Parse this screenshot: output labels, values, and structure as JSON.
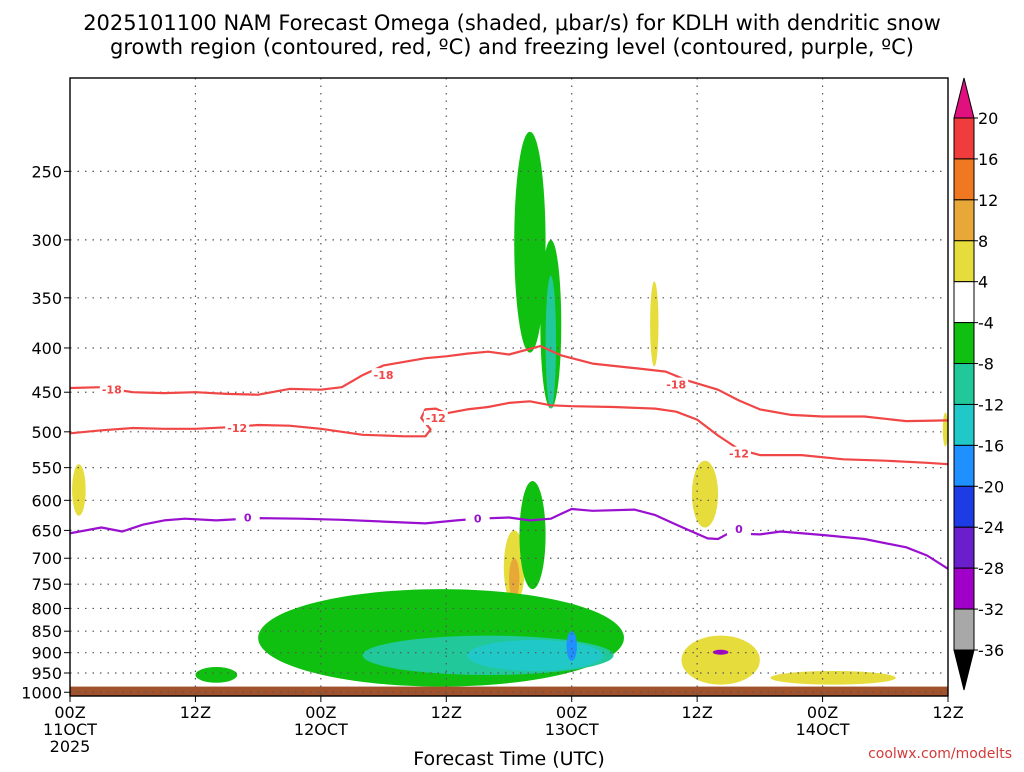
{
  "title_lines": [
    "2025101100 NAM Forecast Omega (shaded, μbar/s) for KDLH with dendritic snow",
    "growth region (contoured, red, ºC) and freezing level (contoured, purple, ºC)"
  ],
  "credit": "coolwx.com/modelts",
  "chart_data": {
    "type": "time-height cross section (filled contour + line contours)",
    "model": "NAM",
    "init_time": "2025101100",
    "station": "KDLH",
    "xlabel": "Forecast Time (UTC)",
    "x_unit": "hours since 2025-10-11 00Z",
    "xlim": [
      0,
      84
    ],
    "x_ticks": [
      {
        "hour": 0,
        "lines": [
          "00Z",
          "11OCT",
          "2025"
        ]
      },
      {
        "hour": 12,
        "lines": [
          "12Z"
        ]
      },
      {
        "hour": 24,
        "lines": [
          "00Z",
          "12OCT"
        ]
      },
      {
        "hour": 36,
        "lines": [
          "12Z"
        ]
      },
      {
        "hour": 48,
        "lines": [
          "00Z",
          "13OCT"
        ]
      },
      {
        "hour": 60,
        "lines": [
          "12Z"
        ]
      },
      {
        "hour": 72,
        "lines": [
          "00Z",
          "14OCT"
        ]
      },
      {
        "hour": 84,
        "lines": [
          "12Z"
        ]
      }
    ],
    "y_unit": "hPa",
    "ylim": [
      1010,
      195
    ],
    "y_scale": "log-pressure (inverted)",
    "y_ticks": [
      250,
      300,
      350,
      400,
      450,
      500,
      550,
      600,
      650,
      700,
      750,
      800,
      850,
      900,
      950,
      1000
    ],
    "grid": "dotted",
    "ground": {
      "color": "#a0522d",
      "pressure_top_hPa": 985
    },
    "colorbar": {
      "unit": "μbar/s",
      "extend": "both",
      "tick_labels": [
        "20",
        "16",
        "12",
        "8",
        "4",
        "-4",
        "-8",
        "-12",
        "-16",
        "-20",
        "-24",
        "-28",
        "-32",
        "-36"
      ],
      "bins": [
        {
          "range": ">20",
          "color": "#e0107f"
        },
        {
          "range": "16 to 20",
          "color": "#f03c3c"
        },
        {
          "range": "12 to 16",
          "color": "#f07820"
        },
        {
          "range": "8 to 12",
          "color": "#e8a838"
        },
        {
          "range": "4 to 8",
          "color": "#e6dc3c"
        },
        {
          "range": "-4 to 4",
          "color": "#ffffff"
        },
        {
          "range": "-8 to -4",
          "color": "#10c010"
        },
        {
          "range": "-12 to -8",
          "color": "#20c89a"
        },
        {
          "range": "-16 to -12",
          "color": "#20c8c8"
        },
        {
          "range": "-20 to -16",
          "color": "#1e90ff"
        },
        {
          "range": "-24 to -20",
          "color": "#1e3ce6"
        },
        {
          "range": "-28 to -24",
          "color": "#6a1ecc"
        },
        {
          "range": "-32 to -28",
          "color": "#a000c8"
        },
        {
          "range": "-36 to -32",
          "color": "#a8a8a8"
        },
        {
          "range": "<-36",
          "color": "#000000"
        }
      ]
    },
    "line_contours": [
      {
        "label": "-18",
        "unit": "ºC",
        "color": "#f04646",
        "points": [
          [
            0,
            445
          ],
          [
            3,
            444
          ],
          [
            6,
            450
          ],
          [
            9,
            451
          ],
          [
            12,
            450
          ],
          [
            15,
            452
          ],
          [
            18,
            453
          ],
          [
            21,
            446
          ],
          [
            24,
            447
          ],
          [
            26,
            444
          ],
          [
            28,
            430
          ],
          [
            30,
            419
          ],
          [
            32,
            415
          ],
          [
            34,
            411
          ],
          [
            36,
            409
          ],
          [
            38,
            406
          ],
          [
            40,
            404
          ],
          [
            42,
            407
          ],
          [
            45,
            398
          ],
          [
            47,
            408
          ],
          [
            50,
            417
          ],
          [
            54,
            422
          ],
          [
            57,
            426
          ],
          [
            59,
            436
          ],
          [
            62,
            447
          ],
          [
            64,
            460
          ],
          [
            66,
            471
          ],
          [
            69,
            478
          ],
          [
            72,
            480
          ],
          [
            76,
            480
          ],
          [
            80,
            486
          ],
          [
            84,
            485
          ]
        ],
        "label_positions": [
          [
            4,
            447
          ],
          [
            30,
            430
          ],
          [
            58,
            441
          ]
        ]
      },
      {
        "label": "-12",
        "unit": "ºC",
        "color": "#f04646",
        "points": [
          [
            0,
            502
          ],
          [
            3,
            498
          ],
          [
            6,
            495
          ],
          [
            9,
            496
          ],
          [
            12,
            496
          ],
          [
            15,
            494
          ],
          [
            18,
            491
          ],
          [
            21,
            492
          ],
          [
            24,
            496
          ],
          [
            26,
            500
          ],
          [
            28,
            504
          ],
          [
            30,
            505
          ],
          [
            32,
            506
          ],
          [
            34,
            506
          ],
          [
            34.5,
            497
          ],
          [
            33.6,
            482
          ],
          [
            34,
            471
          ],
          [
            35,
            470
          ],
          [
            36,
            476
          ],
          [
            38,
            471
          ],
          [
            40,
            468
          ],
          [
            42,
            463
          ],
          [
            44,
            461
          ],
          [
            46,
            466
          ],
          [
            48,
            467
          ],
          [
            52,
            468
          ],
          [
            56,
            470
          ],
          [
            58,
            474
          ],
          [
            60,
            484
          ],
          [
            62,
            505
          ],
          [
            64,
            524
          ],
          [
            66,
            532
          ],
          [
            70,
            532
          ],
          [
            74,
            538
          ],
          [
            78,
            540
          ],
          [
            82,
            543
          ],
          [
            84,
            545
          ]
        ],
        "label_positions": [
          [
            16,
            495
          ],
          [
            35,
            482
          ],
          [
            64,
            530
          ]
        ]
      },
      {
        "label": "0",
        "unit": "ºC",
        "color": "#9a10d0",
        "points": [
          [
            0,
            655
          ],
          [
            3,
            645
          ],
          [
            5,
            652
          ],
          [
            7,
            640
          ],
          [
            9,
            633
          ],
          [
            11,
            630
          ],
          [
            14,
            633
          ],
          [
            18,
            629
          ],
          [
            22,
            630
          ],
          [
            26,
            632
          ],
          [
            30,
            635
          ],
          [
            34,
            638
          ],
          [
            37,
            633
          ],
          [
            39,
            630
          ],
          [
            42,
            628
          ],
          [
            44,
            633
          ],
          [
            46,
            630
          ],
          [
            47,
            622
          ],
          [
            48,
            614
          ],
          [
            50,
            617
          ],
          [
            54,
            615
          ],
          [
            56,
            624
          ],
          [
            58,
            640
          ],
          [
            59,
            648
          ],
          [
            61,
            664
          ],
          [
            62,
            665
          ],
          [
            63,
            655
          ],
          [
            66,
            657
          ],
          [
            68,
            652
          ],
          [
            72,
            658
          ],
          [
            76,
            665
          ],
          [
            80,
            680
          ],
          [
            82,
            695
          ],
          [
            84,
            720
          ]
        ],
        "label_positions": [
          [
            17,
            628
          ],
          [
            39,
            630
          ],
          [
            64,
            648
          ]
        ]
      }
    ],
    "shaded_regions": [
      {
        "level": "-8 to -4",
        "color": "#10c010",
        "hours": [
          42.5,
          45.5
        ],
        "hPa": [
          225,
          405
        ],
        "note": "upper-level green column"
      },
      {
        "level": "-8 to -4",
        "color": "#10c010",
        "hours": [
          45.0,
          47.0
        ],
        "hPa": [
          300,
          470
        ],
        "note": "narrow green tongue"
      },
      {
        "level": "-12 to -8",
        "color": "#20c89a",
        "hours": [
          45.5,
          46.5
        ],
        "hPa": [
          330,
          470
        ],
        "note": "teal core of upper column"
      },
      {
        "level": "4 to 8",
        "color": "#e6dc3c",
        "hours": [
          55.5,
          56.3
        ],
        "hPa": [
          335,
          420
        ],
        "note": "yellow patch"
      },
      {
        "level": "4 to 8",
        "color": "#e6dc3c",
        "hours": [
          0.2,
          1.5
        ],
        "hPa": [
          545,
          625
        ],
        "note": "yellow patch near 11OCT 00Z"
      },
      {
        "level": "4 to 8",
        "color": "#e6dc3c",
        "hours": [
          59.5,
          62
        ],
        "hPa": [
          540,
          645
        ],
        "note": "yellow patch near 13OCT 12Z"
      },
      {
        "level": "4 to 8",
        "color": "#e6dc3c",
        "hours": [
          83.5,
          84
        ],
        "hPa": [
          475,
          520
        ],
        "note": "yellow sliver at right edge"
      },
      {
        "level": "4 to 8",
        "color": "#e6dc3c",
        "hours": [
          41.5,
          43.5
        ],
        "hPa": [
          650,
          790
        ],
        "note": "yellow/orange column"
      },
      {
        "level": "8 to 12",
        "color": "#e8a838",
        "hours": [
          42,
          43
        ],
        "hPa": [
          700,
          780
        ],
        "note": "orange core"
      },
      {
        "level": "-8 to -4",
        "color": "#10c010",
        "hours": [
          43,
          45.5
        ],
        "hPa": [
          570,
          760
        ],
        "note": "mid-level green"
      },
      {
        "level": "-8 to -4",
        "color": "#10c010",
        "hours": [
          12,
          16
        ],
        "hPa": [
          935,
          975
        ],
        "note": "low-level green blob"
      },
      {
        "level": "-8 to -4",
        "color": "#10c010",
        "hours": [
          18,
          53
        ],
        "hPa": [
          760,
          985
        ],
        "note": "main low-level green region"
      },
      {
        "level": "-12 to -8",
        "color": "#20c89a",
        "hours": [
          28,
          52
        ],
        "hPa": [
          860,
          955
        ],
        "note": "low-level teal"
      },
      {
        "level": "-16 to -12",
        "color": "#20c8c8",
        "hours": [
          38,
          51
        ],
        "hPa": [
          870,
          945
        ],
        "note": "low-level cyan core"
      },
      {
        "level": "-20 to -16",
        "color": "#1e90ff",
        "hours": [
          47.5,
          48.5
        ],
        "hPa": [
          850,
          920
        ],
        "note": "blue core"
      },
      {
        "level": "4 to 8",
        "color": "#e6dc3c",
        "hours": [
          58.5,
          66
        ],
        "hPa": [
          860,
          980
        ],
        "note": "low-level yellow"
      },
      {
        "level": "4 to 8",
        "color": "#e6dc3c",
        "hours": [
          67,
          79
        ],
        "hPa": [
          945,
          980
        ],
        "note": "low-level yellow strip"
      },
      {
        "level": "-32 to -28",
        "color": "#a000c8",
        "hours": [
          61.5,
          63
        ],
        "hPa": [
          893,
          905
        ],
        "note": "small purple dot"
      }
    ]
  }
}
